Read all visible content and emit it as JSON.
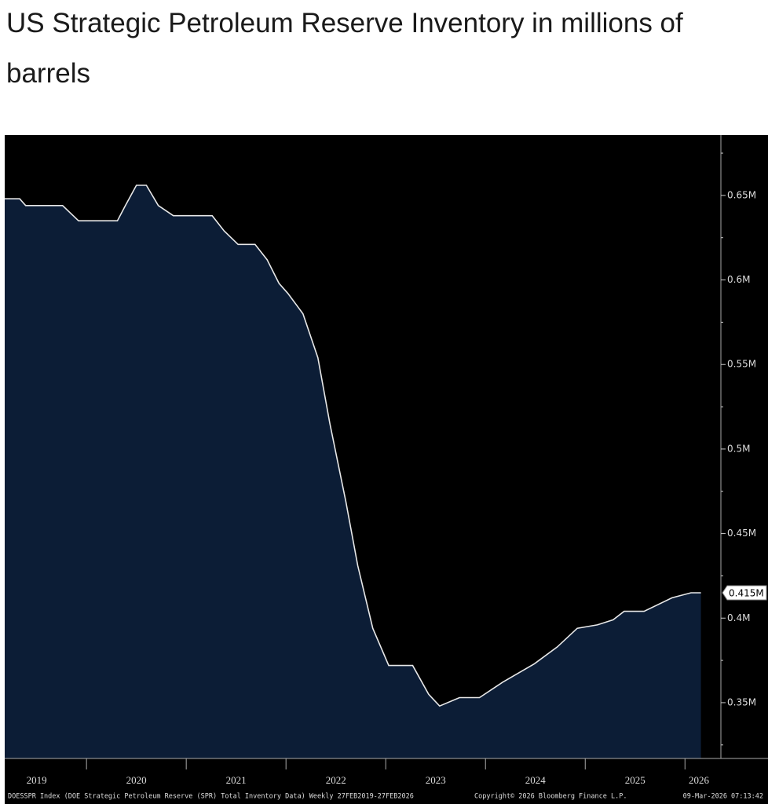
{
  "chart_data": {
    "type": "area",
    "title": "US Strategic Petroleum Reserve Inventory in millions of barrels",
    "x": [
      2019.18,
      2019.33,
      2019.39,
      2019.76,
      2019.92,
      2020.31,
      2020.39,
      2020.5,
      2020.6,
      2020.72,
      2020.87,
      2021.26,
      2021.38,
      2021.52,
      2021.69,
      2021.81,
      2021.93,
      2022.02,
      2022.17,
      2022.32,
      2022.44,
      2022.6,
      2022.72,
      2022.87,
      2023.03,
      2023.27,
      2023.43,
      2023.54,
      2023.74,
      2023.94,
      2024.17,
      2024.49,
      2024.72,
      2024.92,
      2025.12,
      2025.28,
      2025.39,
      2025.59,
      2025.87,
      2026.06,
      2026.16
    ],
    "series": [
      {
        "color": "#0c1d36",
        "line_color": "#e8e8e8",
        "values": [
          0.648,
          0.648,
          0.644,
          0.644,
          0.635,
          0.635,
          0.644,
          0.656,
          0.656,
          0.644,
          0.638,
          0.638,
          0.629,
          0.621,
          0.621,
          0.612,
          0.598,
          0.592,
          0.58,
          0.554,
          0.515,
          0.469,
          0.431,
          0.394,
          0.372,
          0.372,
          0.355,
          0.348,
          0.353,
          0.353,
          0.362,
          0.373,
          0.383,
          0.394,
          0.396,
          0.399,
          0.404,
          0.404,
          0.412,
          0.415,
          0.415
        ]
      }
    ],
    "xlim": [
      2019.18,
      2026.36
    ],
    "xticks": [
      {
        "value": 2019.5,
        "label": "2019"
      },
      {
        "value": 2020.5,
        "label": "2020"
      },
      {
        "value": 2021.5,
        "label": "2021"
      },
      {
        "value": 2022.5,
        "label": "2022"
      },
      {
        "value": 2023.5,
        "label": "2023"
      },
      {
        "value": 2024.5,
        "label": "2024"
      },
      {
        "value": 2025.5,
        "label": "2025"
      },
      {
        "value": 2026.14,
        "label": "2026"
      }
    ],
    "ylim": [
      0.317,
      0.6857
    ],
    "yticks": [
      {
        "value": 0.35,
        "label": "0.35M"
      },
      {
        "value": 0.4,
        "label": "0.4M"
      },
      {
        "value": 0.45,
        "label": "0.45M"
      },
      {
        "value": 0.5,
        "label": "0.5M"
      },
      {
        "value": 0.55,
        "label": "0.55M"
      },
      {
        "value": 0.6,
        "label": "0.6M"
      },
      {
        "value": 0.65,
        "label": "0.65M"
      }
    ],
    "minor_yticks": [
      0.325,
      0.375,
      0.425,
      0.475,
      0.525,
      0.575,
      0.625,
      0.675
    ],
    "last_value_label": {
      "value": 0.415,
      "label": "0.415M"
    },
    "notes": [
      "DOESSPR Index (DOE Strategic Petroleum Reserve (SPR) Total Inventory Data) Weekly 27FEB2019-27FEB2026",
      "Copyright© 2026 Bloomberg Finance L.P.",
      "09-Mar-2026 07:13:42"
    ]
  }
}
